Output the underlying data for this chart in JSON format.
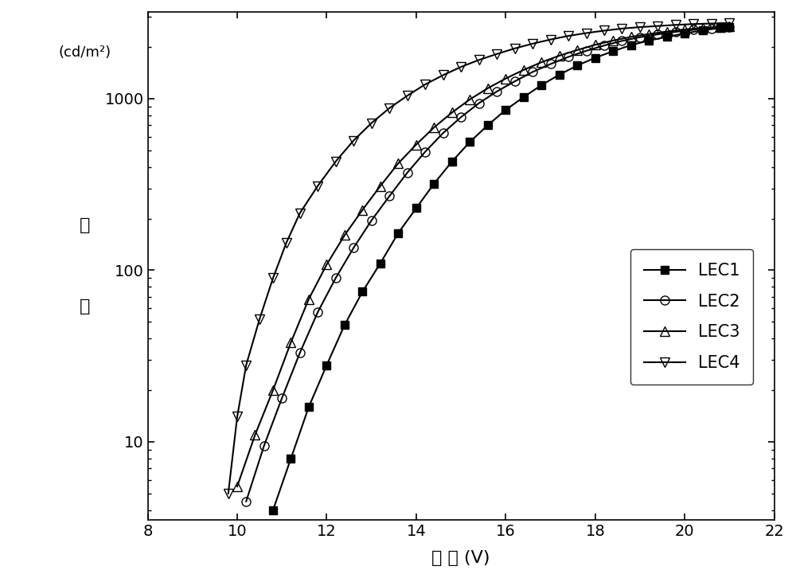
{
  "title": "",
  "xlabel": "电 压 (V)",
  "ylabel_line1": "(cd/m²)",
  "ylabel_line2": "度",
  "ylabel_line3": "亮",
  "xlim": [
    8,
    22
  ],
  "ylim_log": [
    3.5,
    3200
  ],
  "xticks": [
    8,
    10,
    12,
    14,
    16,
    18,
    20,
    22
  ],
  "background_color": "#ffffff",
  "line_color": "#000000",
  "legend_labels": [
    "LEC1",
    "LEC2",
    "LEC3",
    "LEC4"
  ],
  "LEC1": {
    "x": [
      10.8,
      11.2,
      11.6,
      12.0,
      12.4,
      12.8,
      13.2,
      13.6,
      14.0,
      14.4,
      14.8,
      15.2,
      15.6,
      16.0,
      16.4,
      16.8,
      17.2,
      17.6,
      18.0,
      18.4,
      18.8,
      19.2,
      19.6,
      20.0,
      20.4,
      20.8,
      21.0
    ],
    "y": [
      4.0,
      8.0,
      16.0,
      28.0,
      48.0,
      75.0,
      110.0,
      165.0,
      230.0,
      320.0,
      430.0,
      560.0,
      700.0,
      860.0,
      1020.0,
      1200.0,
      1380.0,
      1560.0,
      1730.0,
      1890.0,
      2050.0,
      2180.0,
      2290.0,
      2400.0,
      2500.0,
      2580.0,
      2620.0
    ],
    "marker": "s",
    "markersize": 7
  },
  "LEC2": {
    "x": [
      10.2,
      10.6,
      11.0,
      11.4,
      11.8,
      12.2,
      12.6,
      13.0,
      13.4,
      13.8,
      14.2,
      14.6,
      15.0,
      15.4,
      15.8,
      16.2,
      16.6,
      17.0,
      17.4,
      17.8,
      18.2,
      18.6,
      19.0,
      19.4,
      19.8,
      20.2,
      20.6,
      21.0
    ],
    "y": [
      4.5,
      9.5,
      18.0,
      33.0,
      57.0,
      90.0,
      135.0,
      195.0,
      270.0,
      370.0,
      490.0,
      630.0,
      780.0,
      940.0,
      1100.0,
      1260.0,
      1430.0,
      1590.0,
      1750.0,
      1900.0,
      2040.0,
      2170.0,
      2280.0,
      2370.0,
      2450.0,
      2520.0,
      2570.0,
      2610.0
    ],
    "marker": "o",
    "markersize": 8
  },
  "LEC3": {
    "x": [
      10.0,
      10.4,
      10.8,
      11.2,
      11.6,
      12.0,
      12.4,
      12.8,
      13.2,
      13.6,
      14.0,
      14.4,
      14.8,
      15.2,
      15.6,
      16.0,
      16.4,
      16.8,
      17.2,
      17.6,
      18.0,
      18.4,
      18.8,
      19.2,
      19.6,
      20.0,
      20.4,
      20.8,
      21.0
    ],
    "y": [
      5.5,
      11.0,
      20.0,
      38.0,
      68.0,
      108.0,
      160.0,
      225.0,
      310.0,
      420.0,
      540.0,
      680.0,
      830.0,
      990.0,
      1150.0,
      1310.0,
      1470.0,
      1630.0,
      1780.0,
      1920.0,
      2060.0,
      2180.0,
      2290.0,
      2380.0,
      2460.0,
      2530.0,
      2580.0,
      2620.0,
      2650.0
    ],
    "marker": "^",
    "markersize": 8
  },
  "LEC4": {
    "x": [
      9.8,
      10.0,
      10.2,
      10.5,
      10.8,
      11.1,
      11.4,
      11.8,
      12.2,
      12.6,
      13.0,
      13.4,
      13.8,
      14.2,
      14.6,
      15.0,
      15.4,
      15.8,
      16.2,
      16.6,
      17.0,
      17.4,
      17.8,
      18.2,
      18.6,
      19.0,
      19.4,
      19.8,
      20.2,
      20.6,
      21.0
    ],
    "y": [
      5.0,
      14.0,
      28.0,
      52.0,
      90.0,
      145.0,
      215.0,
      310.0,
      430.0,
      570.0,
      720.0,
      880.0,
      1040.0,
      1210.0,
      1370.0,
      1530.0,
      1680.0,
      1820.0,
      1960.0,
      2090.0,
      2210.0,
      2320.0,
      2410.0,
      2490.0,
      2560.0,
      2610.0,
      2650.0,
      2690.0,
      2720.0,
      2740.0,
      2760.0
    ],
    "marker": "v",
    "markersize": 8
  }
}
